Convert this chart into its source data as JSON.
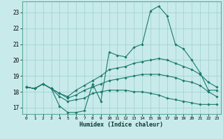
{
  "xlabel": "Humidex (Indice chaleur)",
  "xlim": [
    -0.5,
    23.5
  ],
  "ylim": [
    16.6,
    23.7
  ],
  "yticks": [
    17,
    18,
    19,
    20,
    21,
    22,
    23
  ],
  "xticks": [
    0,
    1,
    2,
    3,
    4,
    5,
    6,
    7,
    8,
    9,
    10,
    11,
    12,
    13,
    14,
    15,
    16,
    17,
    18,
    19,
    20,
    21,
    22,
    23
  ],
  "background_color": "#c8eaea",
  "grid_color": "#9ecece",
  "line_color": "#1a7a6e",
  "lines": [
    {
      "x": [
        0,
        1,
        2,
        3,
        4,
        5,
        6,
        7,
        8,
        9,
        10,
        11,
        12,
        13,
        14,
        15,
        16,
        17,
        18,
        19,
        20,
        21,
        22,
        23
      ],
      "y": [
        18.3,
        18.2,
        18.5,
        18.2,
        17.1,
        16.7,
        16.7,
        16.8,
        18.5,
        17.4,
        20.5,
        20.3,
        20.2,
        20.8,
        21.0,
        23.1,
        23.4,
        22.8,
        21.0,
        20.7,
        20.0,
        19.2,
        18.1,
        18.1
      ]
    },
    {
      "x": [
        0,
        1,
        2,
        3,
        4,
        5,
        6,
        7,
        8,
        9,
        10,
        11,
        12,
        13,
        14,
        15,
        16,
        17,
        18,
        19,
        20,
        21,
        22,
        23
      ],
      "y": [
        18.3,
        18.2,
        18.5,
        18.2,
        17.9,
        17.7,
        18.1,
        18.4,
        18.7,
        19.0,
        19.4,
        19.5,
        19.6,
        19.8,
        19.9,
        20.0,
        20.1,
        20.0,
        19.8,
        19.6,
        19.4,
        19.1,
        18.6,
        18.3
      ]
    },
    {
      "x": [
        0,
        1,
        2,
        3,
        4,
        5,
        6,
        7,
        8,
        9,
        10,
        11,
        12,
        13,
        14,
        15,
        16,
        17,
        18,
        19,
        20,
        21,
        22,
        23
      ],
      "y": [
        18.3,
        18.2,
        18.5,
        18.2,
        17.9,
        17.6,
        17.8,
        18.1,
        18.3,
        18.5,
        18.7,
        18.8,
        18.9,
        19.0,
        19.1,
        19.1,
        19.1,
        19.0,
        18.9,
        18.7,
        18.6,
        18.4,
        18.0,
        17.7
      ]
    },
    {
      "x": [
        0,
        1,
        2,
        3,
        4,
        5,
        6,
        7,
        8,
        9,
        10,
        11,
        12,
        13,
        14,
        15,
        16,
        17,
        18,
        19,
        20,
        21,
        22,
        23
      ],
      "y": [
        18.3,
        18.2,
        18.5,
        18.2,
        17.7,
        17.4,
        17.5,
        17.6,
        17.9,
        18.0,
        18.1,
        18.1,
        18.1,
        18.0,
        18.0,
        17.9,
        17.8,
        17.6,
        17.5,
        17.4,
        17.3,
        17.2,
        17.2,
        17.2
      ]
    }
  ]
}
